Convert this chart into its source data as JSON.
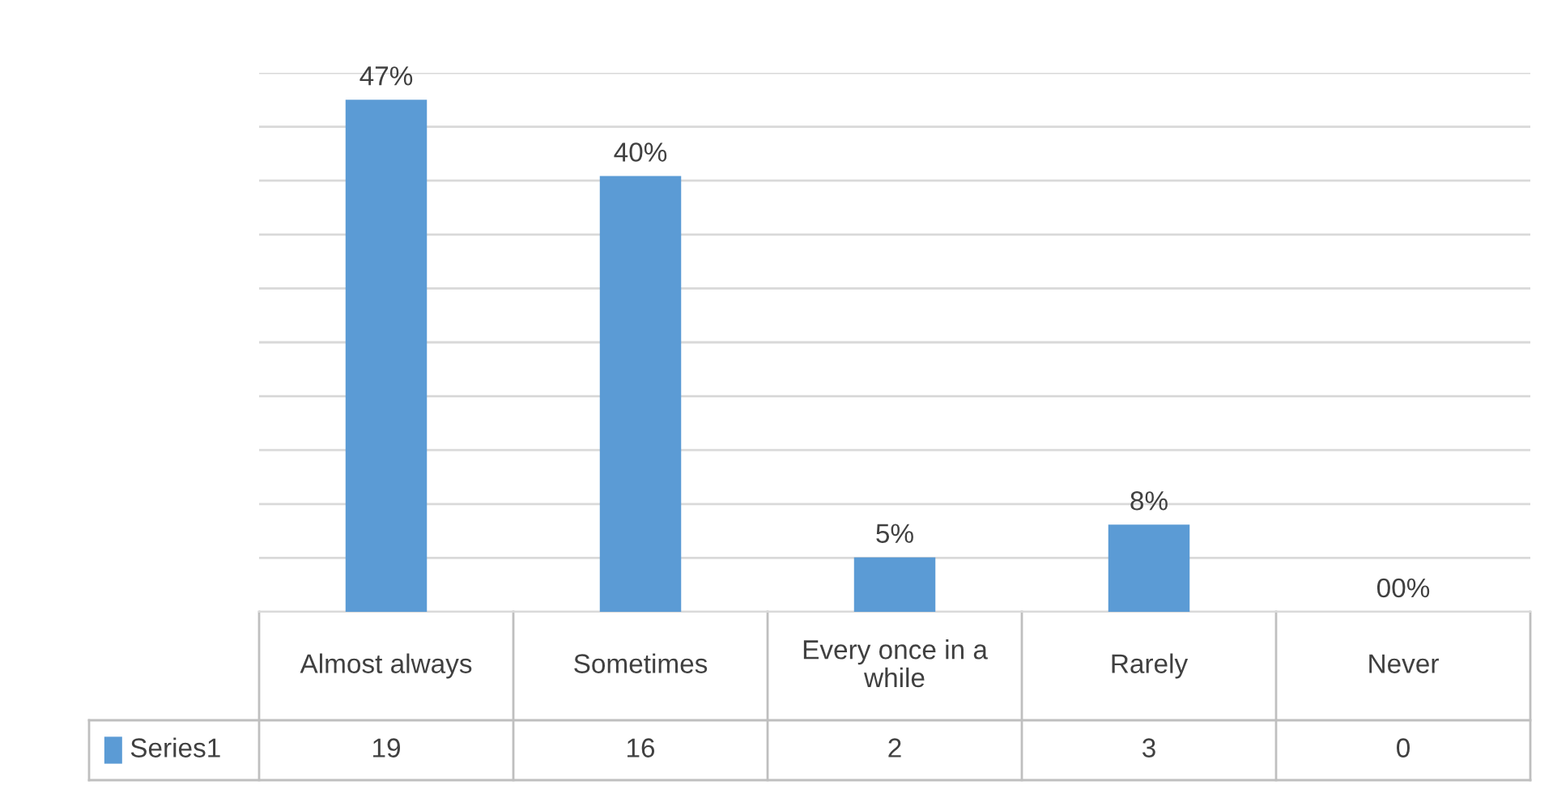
{
  "chart_data": {
    "type": "bar",
    "categories": [
      "Almost always",
      "Sometimes",
      "Every once in a while",
      "Rarely",
      "Never"
    ],
    "series": [
      {
        "name": "Series1",
        "color": "#5b9bd5",
        "values": [
          47,
          40,
          5,
          8,
          0
        ],
        "value_labels": [
          "47%",
          "40%",
          "5%",
          "8%",
          "00%"
        ]
      }
    ],
    "annotations": [
      "19",
      "16",
      "2",
      "3",
      "0"
    ],
    "grid": "y",
    "tick_labels": "x"
  }
}
